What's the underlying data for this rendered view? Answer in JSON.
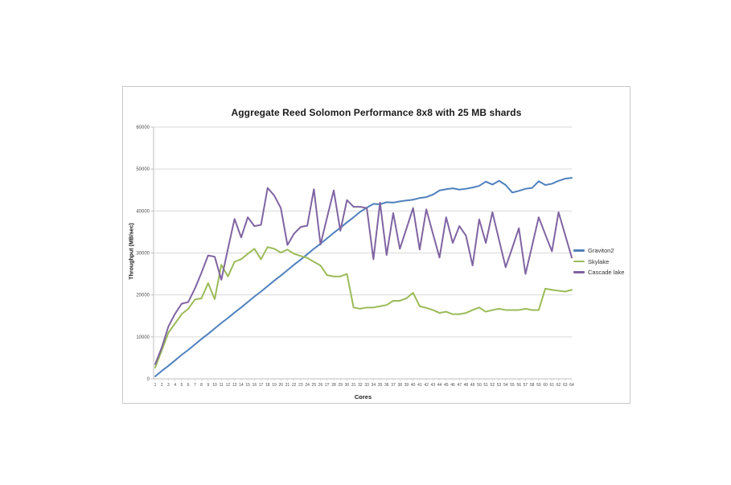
{
  "chart_data": {
    "type": "line",
    "title": "Aggregate Reed Solomon Performance 8x8 with 25 MB shards",
    "xlabel": "Cores",
    "ylabel": "Throughput (MB/sec)",
    "ylim": [
      0,
      60000
    ],
    "yticks": [
      0,
      10000,
      20000,
      30000,
      40000,
      50000,
      60000
    ],
    "grid": "horizontal",
    "legend_position": "right",
    "x": [
      1,
      2,
      3,
      4,
      5,
      6,
      7,
      8,
      9,
      10,
      11,
      12,
      13,
      14,
      15,
      16,
      17,
      18,
      19,
      20,
      21,
      22,
      23,
      24,
      25,
      26,
      27,
      28,
      29,
      30,
      31,
      32,
      33,
      34,
      35,
      36,
      37,
      38,
      39,
      40,
      41,
      42,
      43,
      44,
      45,
      46,
      47,
      48,
      49,
      50,
      51,
      52,
      53,
      54,
      55,
      56,
      57,
      58,
      59,
      60,
      61,
      62,
      63,
      64
    ],
    "series": [
      {
        "name": "Graviton2",
        "color": "#4F81BD",
        "values": [
          600,
          1900,
          3100,
          4400,
          5700,
          6900,
          8200,
          9500,
          10700,
          12000,
          13300,
          14500,
          15800,
          17000,
          18300,
          19600,
          20800,
          22100,
          23400,
          24600,
          25900,
          27200,
          28400,
          29700,
          31000,
          32200,
          33500,
          34800,
          36000,
          37300,
          38500,
          39800,
          40800,
          41700,
          41600,
          42100,
          42000,
          42300,
          42500,
          42700,
          43100,
          43300,
          43900,
          44900,
          45200,
          45400,
          45100,
          45300,
          45600,
          46000,
          47000,
          46300,
          47200,
          46200,
          44400,
          44800,
          45300,
          45500,
          47100,
          46200,
          46500,
          47200,
          47700,
          47900
        ]
      },
      {
        "name": "Skylake",
        "color": "#9BBB59",
        "values": [
          2700,
          6800,
          11000,
          13200,
          15400,
          16700,
          18900,
          19200,
          22800,
          19000,
          27200,
          24400,
          27900,
          28500,
          29800,
          31000,
          28500,
          31400,
          31000,
          30100,
          30800,
          29800,
          29300,
          28800,
          27900,
          27000,
          24700,
          24400,
          24400,
          25000,
          17000,
          16700,
          17000,
          17000,
          17300,
          17600,
          18600,
          18600,
          19200,
          20500,
          17300,
          16900,
          16400,
          15700,
          16000,
          15400,
          15400,
          15700,
          16400,
          17000,
          16000,
          16400,
          16700,
          16400,
          16400,
          16400,
          16700,
          16400,
          16400,
          21500,
          21200,
          21000,
          20800,
          21200
        ]
      },
      {
        "name": "Cascade lake",
        "color": "#8064A2",
        "values": [
          3500,
          7500,
          12500,
          15500,
          17900,
          18300,
          21500,
          25300,
          29400,
          29100,
          23600,
          31000,
          38100,
          33700,
          38500,
          36400,
          36700,
          45500,
          43700,
          40700,
          31900,
          34600,
          36200,
          36500,
          45200,
          32000,
          38500,
          44900,
          35300,
          42600,
          41000,
          41000,
          40700,
          28500,
          42000,
          29500,
          39500,
          31000,
          35800,
          40700,
          30800,
          40400,
          34600,
          28900,
          38500,
          32400,
          36400,
          34100,
          27000,
          38000,
          32400,
          39700,
          33100,
          26600,
          31200,
          35900,
          25000,
          31700,
          38500,
          34400,
          30400,
          39700,
          34300,
          28900
        ]
      }
    ],
    "colors": {
      "gridline": "#d9d9d9",
      "axis": "#bfbfbf",
      "tick_text": "#4d4d4d"
    }
  }
}
